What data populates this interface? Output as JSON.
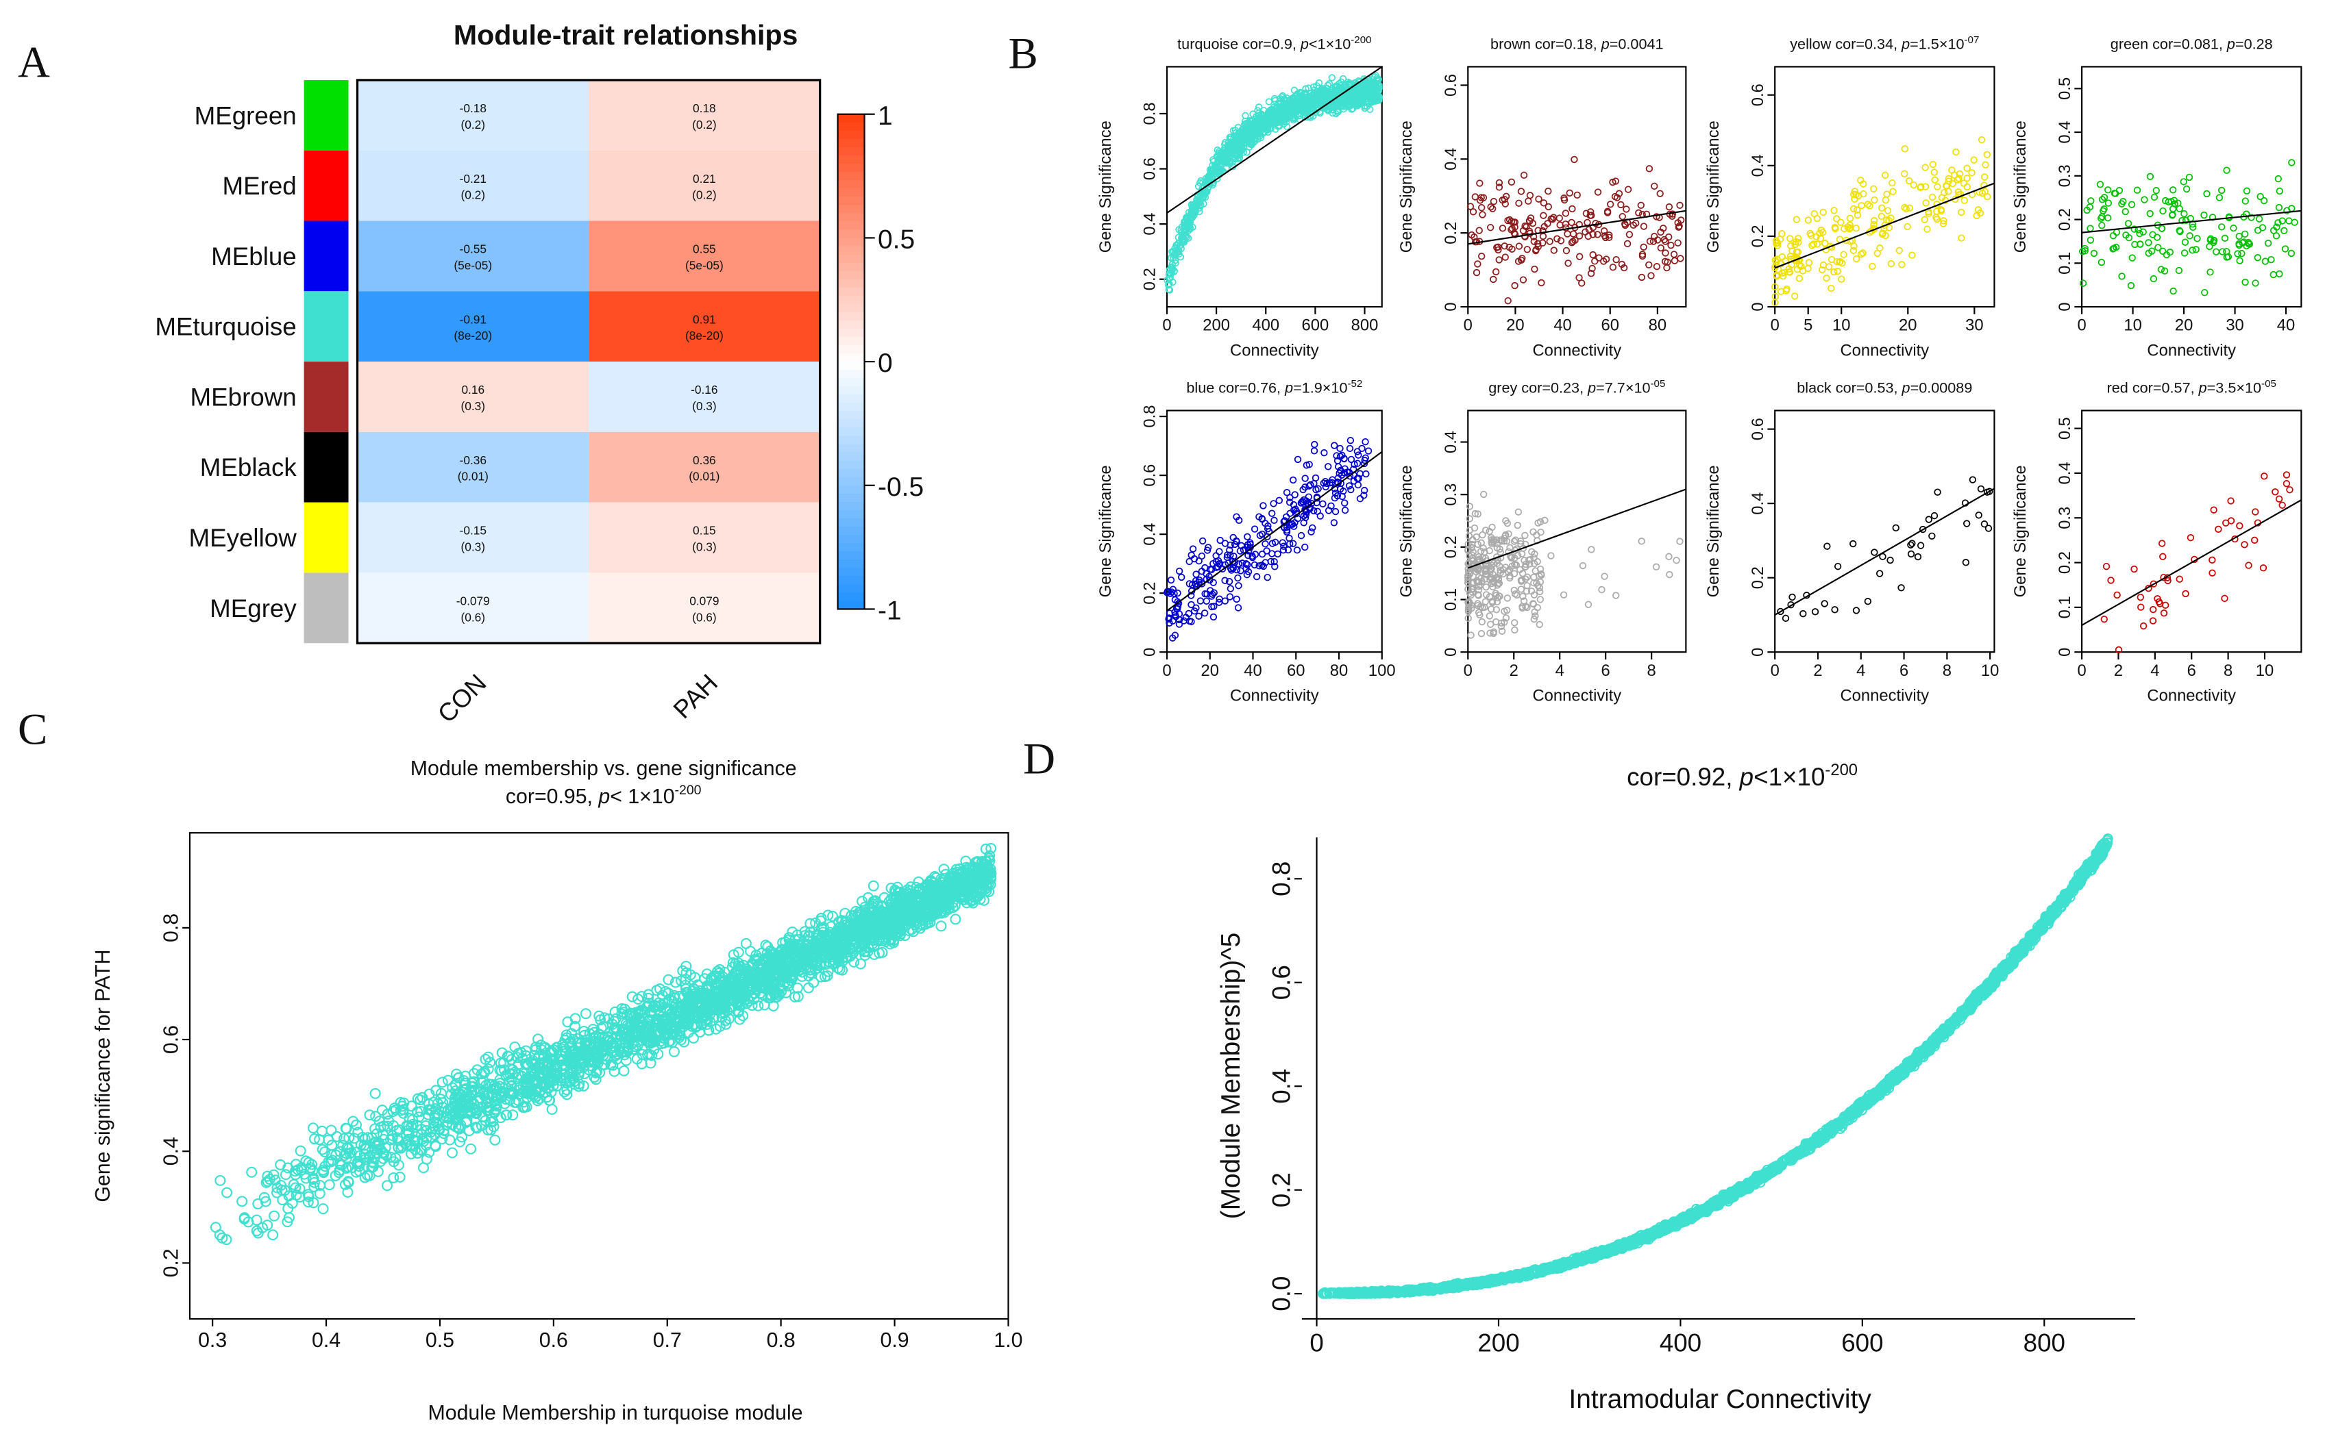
{
  "panel_labels": {
    "a": "A",
    "b": "B",
    "c": "C",
    "d": "D"
  },
  "chart_data": [
    {
      "panel": "A",
      "type": "heatmap",
      "title": "Module-trait relationships",
      "rows": [
        "MEgreen",
        "MEred",
        "MEblue",
        "MEturquoise",
        "MEbrown",
        "MEblack",
        "MEyellow",
        "MEgrey"
      ],
      "row_colors": [
        "#00E000",
        "#FF0000",
        "#0000F0",
        "#40E0D0",
        "#A52A2A",
        "#000000",
        "#FFFF00",
        "#BEBEBE"
      ],
      "columns": [
        "CON",
        "PAH"
      ],
      "values": [
        [
          -0.18,
          0.18
        ],
        [
          -0.21,
          0.21
        ],
        [
          -0.55,
          0.55
        ],
        [
          -0.91,
          0.91
        ],
        [
          0.16,
          -0.16
        ],
        [
          -0.36,
          0.36
        ],
        [
          -0.15,
          0.15
        ],
        [
          -0.079,
          0.079
        ]
      ],
      "labels": [
        [
          "-0.18",
          "0.18"
        ],
        [
          "-0.21",
          "0.21"
        ],
        [
          "-0.55",
          "0.55"
        ],
        [
          "-0.91",
          "0.91"
        ],
        [
          "0.16",
          "-0.16"
        ],
        [
          "-0.36",
          "0.36"
        ],
        [
          "-0.15",
          "0.15"
        ],
        [
          "-0.079",
          "0.079"
        ]
      ],
      "pvalues": [
        [
          "(0.2)",
          "(0.2)"
        ],
        [
          "(0.2)",
          "(0.2)"
        ],
        [
          "(5e-05)",
          "(5e-05)"
        ],
        [
          "(8e-20)",
          "(8e-20)"
        ],
        [
          "(0.3)",
          "(0.3)"
        ],
        [
          "(0.01)",
          "(0.01)"
        ],
        [
          "(0.3)",
          "(0.3)"
        ],
        [
          "(0.6)",
          "(0.6)"
        ]
      ],
      "colorbar": {
        "range": [
          -1,
          1
        ],
        "ticks": [
          "1",
          "0.5",
          "0",
          "-0.5",
          "-1"
        ],
        "low_color": "#1E90FF",
        "mid_color": "#FFFFFF",
        "high_color": "#FF3D0D"
      }
    },
    {
      "panel": "B",
      "type": "scatter",
      "ylabel": "Gene Significance",
      "xlabel": "Connectivity",
      "subplots": [
        {
          "module": "turquoise",
          "color": "#40E0D0",
          "title": "turquoise cor=0.9, ",
          "p": "<1×10",
          "exp": "-200",
          "xlim": [
            0,
            870
          ],
          "ylim": [
            0.1,
            0.97
          ],
          "xticks": [
            0,
            200,
            400,
            600,
            800
          ],
          "yticks": [
            0.2,
            0.4,
            0.6,
            0.8
          ],
          "trend_line": [
            [
              0,
              0.44
            ],
            [
              870,
              0.97
            ]
          ]
        },
        {
          "module": "brown",
          "color": "#8B1A1A",
          "title": "brown cor=0.18, ",
          "p": "=0.0041",
          "exp": "",
          "xlim": [
            0,
            92
          ],
          "ylim": [
            0,
            0.65
          ],
          "xticks": [
            0,
            20,
            40,
            60,
            80
          ],
          "yticks": [
            0,
            0.2,
            0.4,
            0.6
          ],
          "trend_line": [
            [
              0,
              0.17
            ],
            [
              92,
              0.26
            ]
          ]
        },
        {
          "module": "yellow",
          "color": "#F0E000",
          "title": "yellow cor=0.34, ",
          "p": "=1.5×10",
          "exp": "-07",
          "xlim": [
            0,
            33
          ],
          "ylim": [
            0,
            0.68
          ],
          "xticks": [
            0,
            5,
            10,
            20,
            30
          ],
          "yticks": [
            0,
            0.2,
            0.4,
            0.6
          ],
          "trend_line": [
            [
              0,
              0.11
            ],
            [
              33,
              0.35
            ]
          ]
        },
        {
          "module": "green",
          "color": "#00C000",
          "title": "green cor=0.081, ",
          "p": "=0.28",
          "exp": "",
          "xlim": [
            0,
            43
          ],
          "ylim": [
            0,
            0.55
          ],
          "xticks": [
            0,
            10,
            20,
            30,
            40
          ],
          "yticks": [
            0,
            0.1,
            0.2,
            0.3,
            0.4,
            0.5
          ],
          "trend_line": [
            [
              0,
              0.17
            ],
            [
              43,
              0.22
            ]
          ]
        },
        {
          "module": "blue",
          "color": "#0000CC",
          "title": "blue cor=0.76, ",
          "p": "=1.9×10",
          "exp": "-52",
          "xlim": [
            0,
            100
          ],
          "ylim": [
            0,
            0.82
          ],
          "xticks": [
            0,
            20,
            40,
            60,
            80,
            100
          ],
          "yticks": [
            0,
            0.2,
            0.4,
            0.6,
            0.8
          ],
          "trend_line": [
            [
              0,
              0.14
            ],
            [
              100,
              0.68
            ]
          ]
        },
        {
          "module": "grey",
          "color": "#AAAAAA",
          "title": "grey cor=0.23, ",
          "p": "=7.7×10",
          "exp": "-05",
          "xlim": [
            0,
            9.5
          ],
          "ylim": [
            0,
            0.46
          ],
          "xticks": [
            0,
            2,
            4,
            6,
            8
          ],
          "yticks": [
            0,
            0.1,
            0.2,
            0.3,
            0.4
          ],
          "trend_line": [
            [
              0,
              0.16
            ],
            [
              9.5,
              0.31
            ]
          ]
        },
        {
          "module": "black",
          "color": "#000000",
          "title": "black cor=0.53, ",
          "p": "=0.00089",
          "exp": "",
          "xlim": [
            0,
            10.2
          ],
          "ylim": [
            0,
            0.65
          ],
          "xticks": [
            0,
            2,
            4,
            6,
            8,
            10
          ],
          "yticks": [
            0,
            0.2,
            0.4,
            0.6
          ],
          "trend_line": [
            [
              0,
              0.1
            ],
            [
              10.2,
              0.44
            ]
          ]
        },
        {
          "module": "red",
          "color": "#CC0000",
          "title": "red cor=0.57, ",
          "p": "=3.5×10",
          "exp": "-05",
          "xlim": [
            0,
            12
          ],
          "ylim": [
            0,
            0.54
          ],
          "xticks": [
            0,
            2,
            4,
            6,
            8,
            10
          ],
          "yticks": [
            0,
            0.1,
            0.2,
            0.3,
            0.4,
            0.5
          ],
          "trend_line": [
            [
              0,
              0.06
            ],
            [
              12,
              0.34
            ]
          ]
        }
      ]
    },
    {
      "panel": "C",
      "type": "scatter",
      "title": "Module membership vs. gene significance",
      "subtitle_prefix": "cor=0.95, ",
      "subtitle_p": "p",
      "subtitle_rest": "< 1×10",
      "subtitle_exp": "-200",
      "xlabel": "Module Membership in turquoise module",
      "ylabel": "Gene significance for PATH",
      "color": "#40E0D0",
      "xlim": [
        0.28,
        1.0
      ],
      "ylim": [
        0.1,
        0.97
      ],
      "xticks": [
        "0.3",
        "0.4",
        "0.5",
        "0.6",
        "0.7",
        "0.8",
        "0.9",
        "1.0"
      ],
      "yticks": [
        "0.2",
        "0.4",
        "0.6",
        "0.8"
      ]
    },
    {
      "panel": "D",
      "type": "scatter",
      "title_prefix": "cor=0.92, ",
      "title_p": "p",
      "title_rest": "<1×10",
      "title_exp": "-200",
      "xlabel": "Intramodular Connectivity",
      "ylabel": "(Module Membership)^5",
      "color": "#40E0D0",
      "xlim": [
        0,
        900
      ],
      "ylim": [
        -0.02,
        0.88
      ],
      "xticks": [
        "0",
        "200",
        "400",
        "600",
        "800"
      ],
      "yticks": [
        "0.0",
        "0.2",
        "0.4",
        "0.6",
        "0.8"
      ]
    }
  ]
}
